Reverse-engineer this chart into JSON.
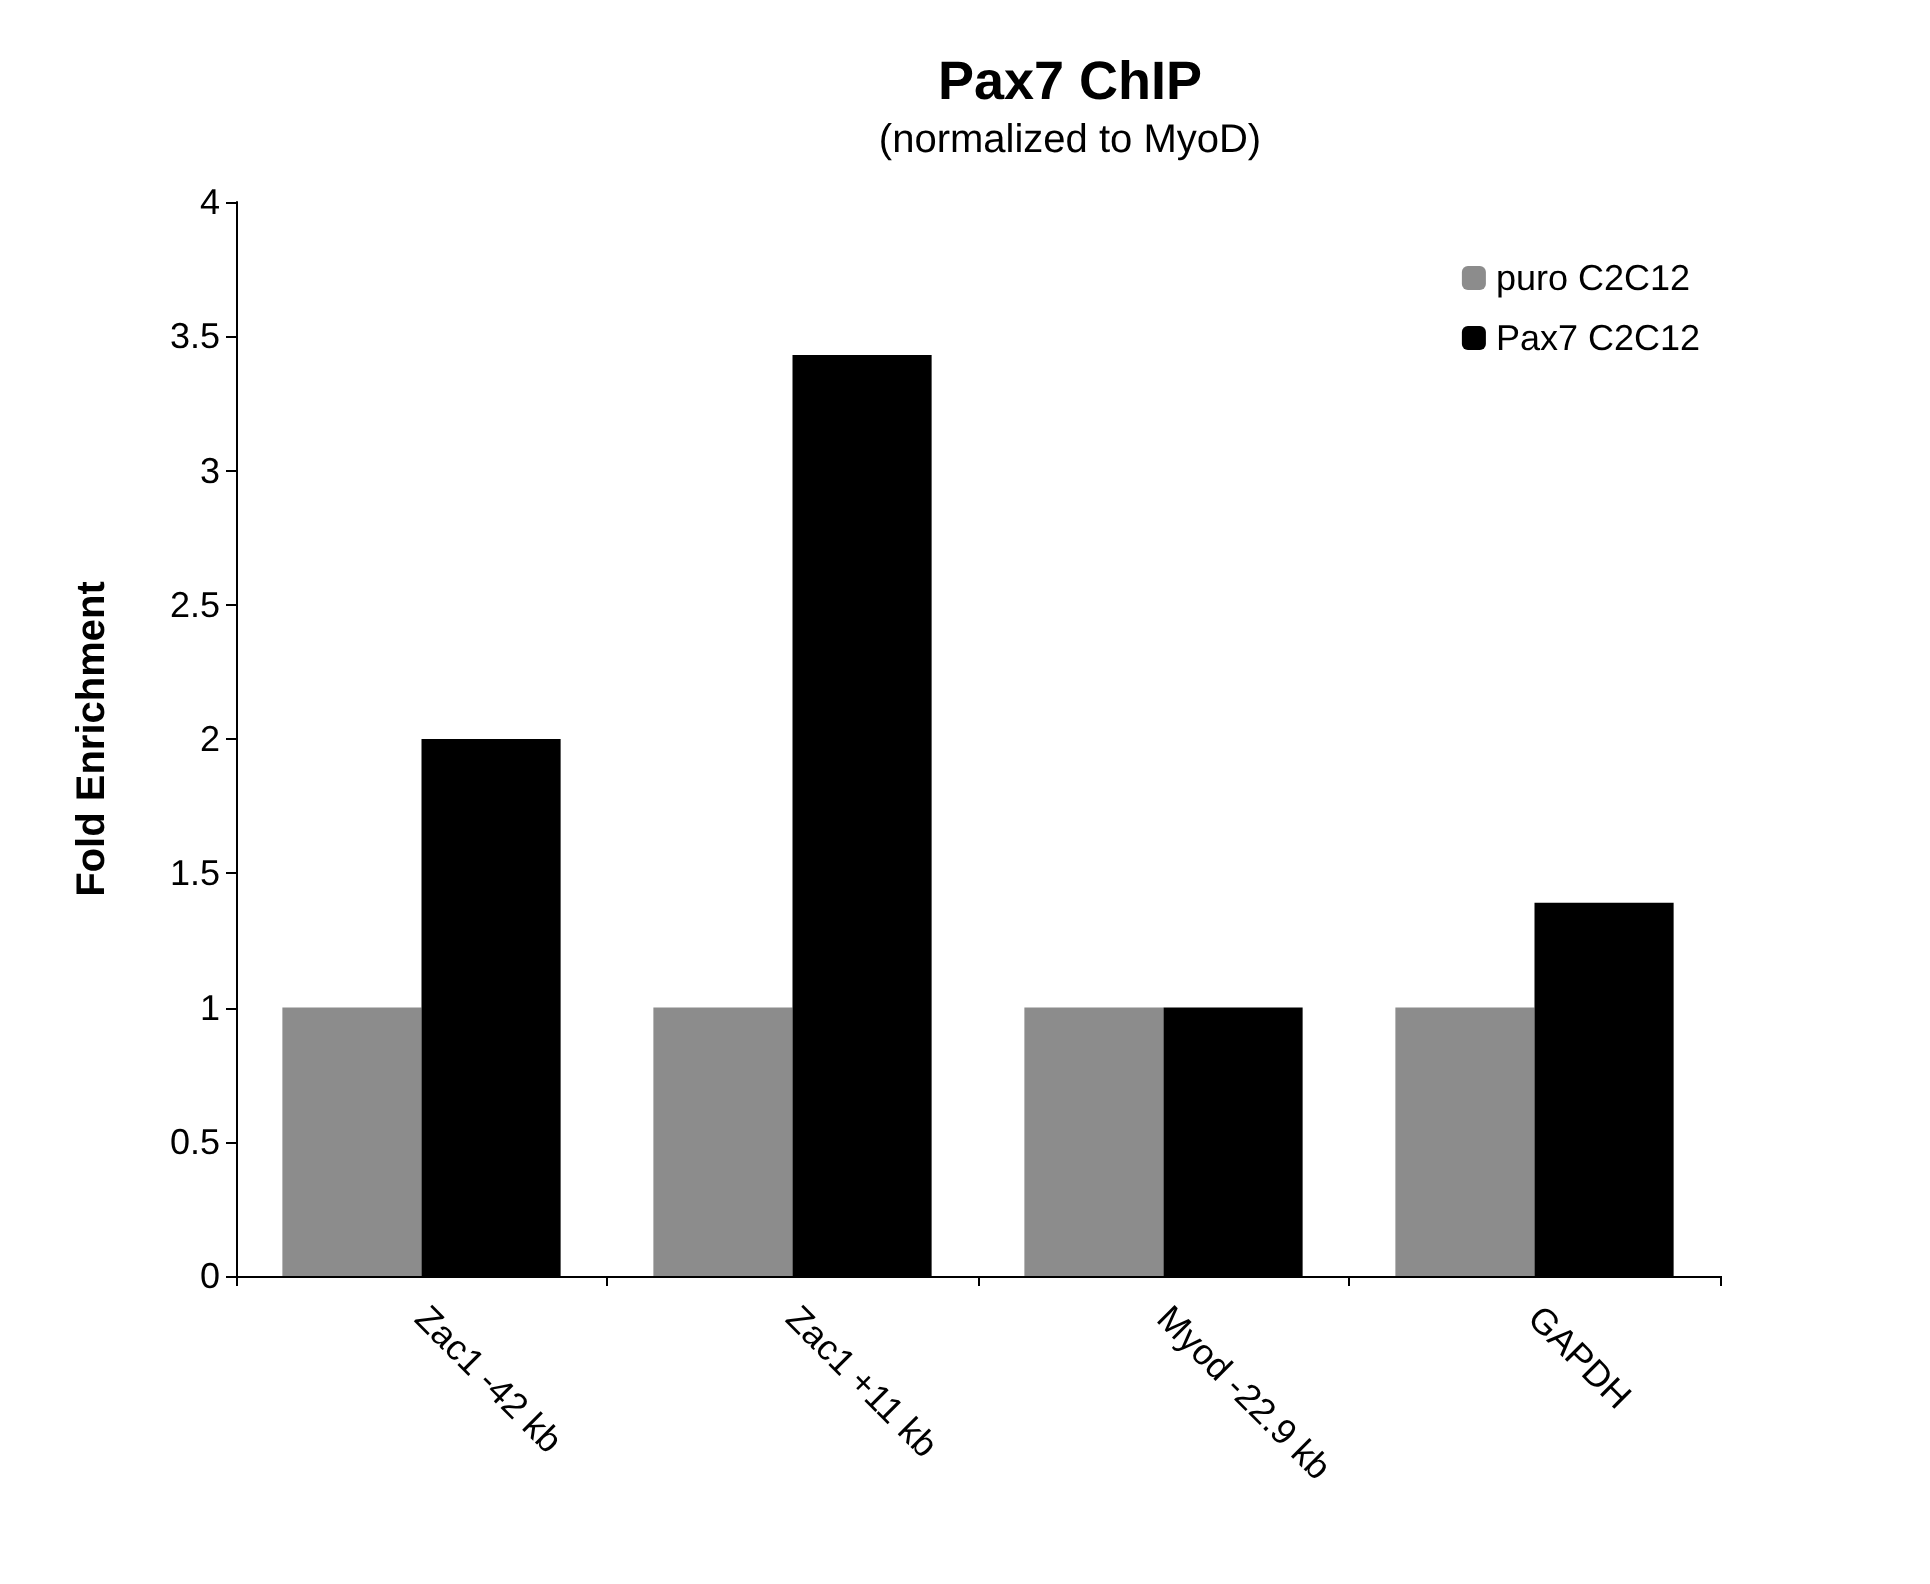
{
  "chart_data": {
    "type": "bar",
    "title": "Pax7 ChIP",
    "subtitle": "(normalized to MyoD)",
    "ylabel": "Fold Enrichment",
    "categories": [
      "Zac1 -42 kb",
      "Zac1 +11 kb",
      "Myod -22.9 kb",
      "GAPDH"
    ],
    "series": [
      {
        "name": "puro C2C12",
        "color": "#8c8c8c",
        "values": [
          1.0,
          1.0,
          1.0,
          1.0
        ]
      },
      {
        "name": "Pax7 C2C12",
        "color": "#000000",
        "values": [
          2.0,
          3.43,
          1.0,
          1.39
        ]
      }
    ],
    "ylim": [
      0,
      4
    ],
    "yticks": [
      0,
      0.5,
      1,
      1.5,
      2,
      2.5,
      3,
      3.5,
      4
    ],
    "grid": false,
    "legend": "top right"
  }
}
